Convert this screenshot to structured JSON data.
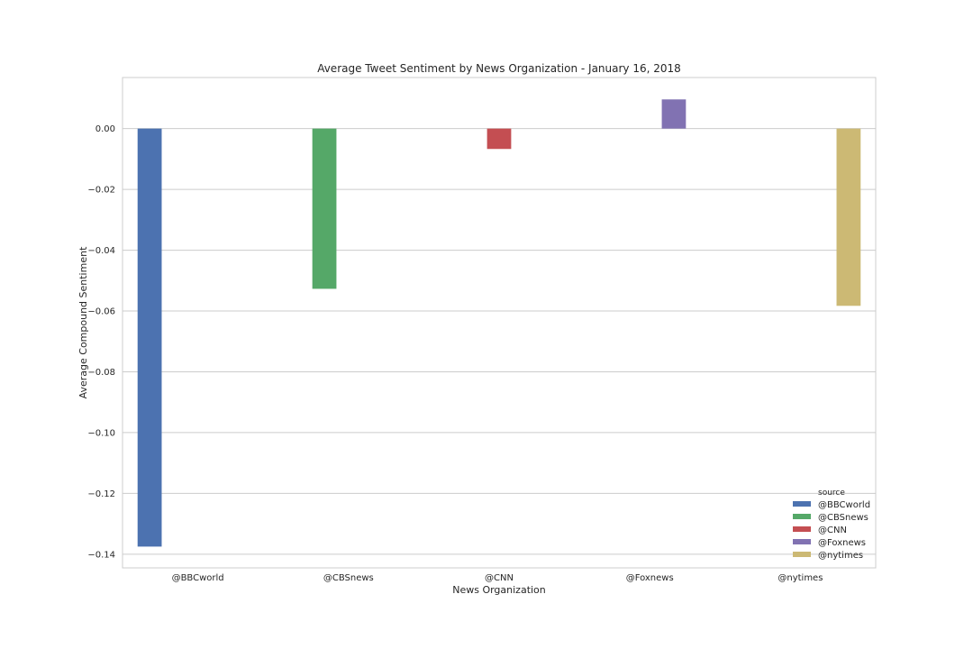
{
  "chart_data": {
    "type": "bar",
    "title": "Average Tweet Sentiment by News Organization - January 16, 2018",
    "xlabel": "News Organization",
    "ylabel": "Average Compound Sentiment",
    "categories": [
      "@BBCworld",
      "@CBSnews",
      "@CNN",
      "@Foxnews",
      "@nytimes"
    ],
    "series": [
      {
        "name": "@BBCworld",
        "color": "#4c72b0",
        "values": [
          -0.1375,
          null,
          null,
          null,
          null
        ]
      },
      {
        "name": "@CBSnews",
        "color": "#55a868",
        "values": [
          null,
          -0.0527,
          null,
          null,
          null
        ]
      },
      {
        "name": "@CNN",
        "color": "#c44e52",
        "values": [
          null,
          null,
          -0.0067,
          null,
          null
        ]
      },
      {
        "name": "@Foxnews",
        "color": "#8172b2",
        "values": [
          null,
          null,
          null,
          0.0096,
          null
        ]
      },
      {
        "name": "@nytimes",
        "color": "#ccb974",
        "values": [
          null,
          null,
          null,
          null,
          -0.0583
        ]
      }
    ],
    "ylim": [
      -0.1445,
      0.0168
    ],
    "yticks": [
      0.0,
      -0.02,
      -0.04,
      -0.06,
      -0.08,
      -0.1,
      -0.12,
      -0.14
    ],
    "ytick_labels": [
      "0.00",
      "−0.02",
      "−0.04",
      "−0.06",
      "−0.08",
      "−0.10",
      "−0.12",
      "−0.14"
    ],
    "grid": true,
    "legend": {
      "title": "source",
      "position": "lower-right"
    }
  }
}
